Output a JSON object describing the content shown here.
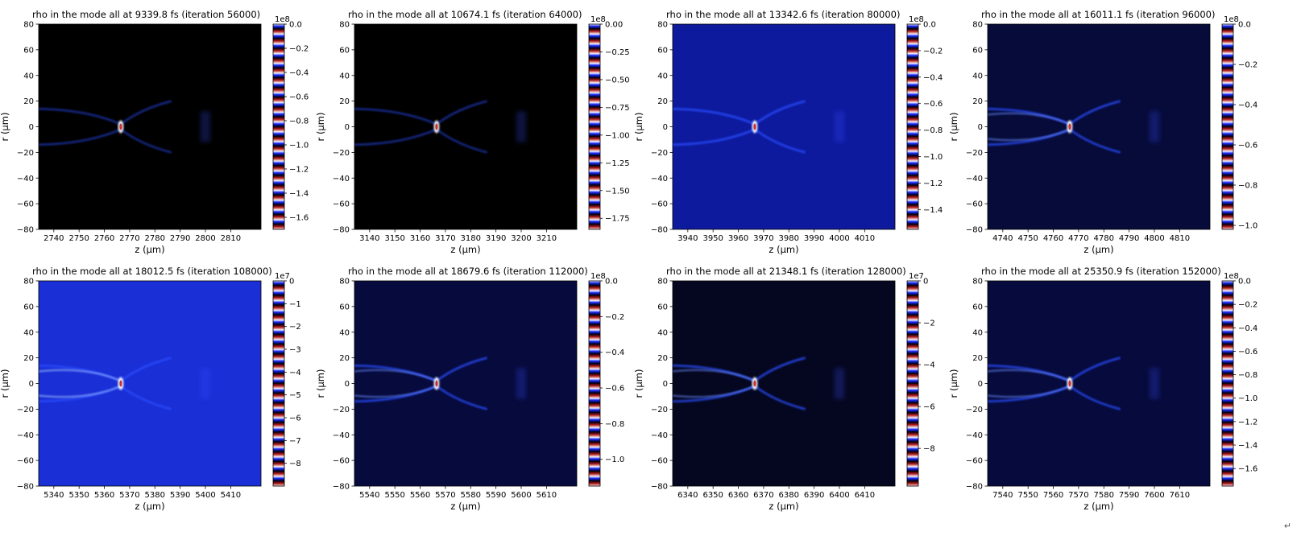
{
  "chart_data": [
    {
      "type": "heatmap",
      "title": "rho in the mode all at 9339.8 fs   (iteration 56000)",
      "xlabel": "z (μm)",
      "ylabel": "r (μm)",
      "xlim": [
        2734,
        2822
      ],
      "ylim": [
        -80,
        80
      ],
      "xticks": [
        2740,
        2750,
        2760,
        2770,
        2780,
        2790,
        2800,
        2810
      ],
      "yticks": [
        -80,
        -60,
        -40,
        -20,
        0,
        20,
        40,
        60,
        80
      ],
      "background": "#000000",
      "colorbar": {
        "exponent": "1e8",
        "range": [
          -1.7,
          0.0
        ],
        "ticks": [
          0.0,
          -0.2,
          -0.4,
          -0.6,
          -0.8,
          -1.0,
          -1.2,
          -1.4,
          -1.6
        ],
        "tick_labels": [
          "0.0",
          "−0.2",
          "−0.4",
          "−0.6",
          "−0.8",
          "−1.0",
          "−1.2",
          "−1.4",
          "−1.6"
        ]
      }
    },
    {
      "type": "heatmap",
      "title": "rho in the mode all at 10674.1 fs   (iteration 64000)",
      "xlabel": "z (μm)",
      "ylabel": "r (μm)",
      "xlim": [
        3134,
        3222
      ],
      "ylim": [
        -80,
        80
      ],
      "xticks": [
        3140,
        3150,
        3160,
        3170,
        3180,
        3190,
        3200,
        3210
      ],
      "yticks": [
        -80,
        -60,
        -40,
        -20,
        0,
        20,
        40,
        60,
        80
      ],
      "background": "#000000",
      "colorbar": {
        "exponent": "1e8",
        "range": [
          -1.85,
          0.0
        ],
        "ticks": [
          0.0,
          -0.25,
          -0.5,
          -0.75,
          -1.0,
          -1.25,
          -1.5,
          -1.75
        ],
        "tick_labels": [
          "0.00",
          "−0.25",
          "−0.50",
          "−0.75",
          "−1.00",
          "−1.25",
          "−1.50",
          "−1.75"
        ]
      }
    },
    {
      "type": "heatmap",
      "title": "rho in the mode all at 13342.6 fs   (iteration 80000)",
      "xlabel": "z (μm)",
      "ylabel": "r (μm)",
      "xlim": [
        3934,
        4022
      ],
      "ylim": [
        -80,
        80
      ],
      "xticks": [
        3940,
        3950,
        3960,
        3970,
        3980,
        3990,
        4000,
        4010
      ],
      "yticks": [
        -80,
        -60,
        -40,
        -20,
        0,
        20,
        40,
        60,
        80
      ],
      "background": "#0d1a9e",
      "colorbar": {
        "exponent": "1e8",
        "range": [
          -1.55,
          0.0
        ],
        "ticks": [
          0.0,
          -0.2,
          -0.4,
          -0.6,
          -0.8,
          -1.0,
          -1.2,
          -1.4
        ],
        "tick_labels": [
          "0.0",
          "−0.2",
          "−0.4",
          "−0.6",
          "−0.8",
          "−1.0",
          "−1.2",
          "−1.4"
        ]
      }
    },
    {
      "type": "heatmap",
      "title": "rho in the mode all at 16011.1 fs   (iteration 96000)",
      "xlabel": "z (μm)",
      "ylabel": "r (μm)",
      "xlim": [
        4734,
        4822
      ],
      "ylim": [
        -80,
        80
      ],
      "xticks": [
        4740,
        4750,
        4760,
        4770,
        4780,
        4790,
        4800,
        4810
      ],
      "yticks": [
        -80,
        -60,
        -40,
        -20,
        0,
        20,
        40,
        60,
        80
      ],
      "background": "#060b3a",
      "colorbar": {
        "exponent": "1e8",
        "range": [
          -1.02,
          0.0
        ],
        "ticks": [
          0.0,
          -0.2,
          -0.4,
          -0.6,
          -0.8,
          -1.0
        ],
        "tick_labels": [
          "0.0",
          "−0.2",
          "−0.4",
          "−0.6",
          "−0.8",
          "−1.0"
        ]
      }
    },
    {
      "type": "heatmap",
      "title": "rho in the mode all at 18012.5 fs   (iteration 108000)",
      "xlabel": "z (μm)",
      "ylabel": "r (μm)",
      "xlim": [
        5334,
        5422
      ],
      "ylim": [
        -80,
        80
      ],
      "xticks": [
        5340,
        5350,
        5360,
        5370,
        5380,
        5390,
        5400,
        5410
      ],
      "yticks": [
        -80,
        -60,
        -40,
        -20,
        0,
        20,
        40,
        60,
        80
      ],
      "background": "#1a2fd6",
      "colorbar": {
        "exponent": "1e7",
        "range": [
          -9.0,
          0.0
        ],
        "ticks": [
          0,
          -1,
          -2,
          -3,
          -4,
          -5,
          -6,
          -7,
          -8
        ],
        "tick_labels": [
          "0",
          "−1",
          "−2",
          "−3",
          "−4",
          "−5",
          "−6",
          "−7",
          "−8"
        ]
      }
    },
    {
      "type": "heatmap",
      "title": "rho in the mode all at 18679.6 fs   (iteration 112000)",
      "xlabel": "z (μm)",
      "ylabel": "r (μm)",
      "xlim": [
        5534,
        5622
      ],
      "ylim": [
        -80,
        80
      ],
      "xticks": [
        5540,
        5550,
        5560,
        5570,
        5580,
        5590,
        5600,
        5610
      ],
      "yticks": [
        -80,
        -60,
        -40,
        -20,
        0,
        20,
        40,
        60,
        80
      ],
      "background": "#060a3c",
      "colorbar": {
        "exponent": "1e8",
        "range": [
          -1.15,
          0.0
        ],
        "ticks": [
          0.0,
          -0.2,
          -0.4,
          -0.6,
          -0.8,
          -1.0
        ],
        "tick_labels": [
          "0.0",
          "−0.2",
          "−0.4",
          "−0.6",
          "−0.8",
          "−1.0"
        ]
      }
    },
    {
      "type": "heatmap",
      "title": "rho in the mode all at 21348.1 fs   (iteration 128000)",
      "xlabel": "z (μm)",
      "ylabel": "r (μm)",
      "xlim": [
        6334,
        6422
      ],
      "ylim": [
        -80,
        80
      ],
      "xticks": [
        6340,
        6350,
        6360,
        6370,
        6380,
        6390,
        6400,
        6410
      ],
      "yticks": [
        -80,
        -60,
        -40,
        -20,
        0,
        20,
        40,
        60,
        80
      ],
      "background": "#050720",
      "colorbar": {
        "exponent": "1e7",
        "range": [
          -9.8,
          0.0
        ],
        "ticks": [
          0,
          -2,
          -4,
          -6,
          -8
        ],
        "tick_labels": [
          "0",
          "−2",
          "−4",
          "−6",
          "−8"
        ]
      }
    },
    {
      "type": "heatmap",
      "title": "rho in the mode all at 25350.9 fs   (iteration 152000)",
      "xlabel": "z (μm)",
      "ylabel": "r (μm)",
      "xlim": [
        7534,
        7622
      ],
      "ylim": [
        -80,
        80
      ],
      "xticks": [
        7540,
        7550,
        7560,
        7570,
        7580,
        7590,
        7600,
        7610
      ],
      "yticks": [
        -80,
        -60,
        -40,
        -20,
        0,
        20,
        40,
        60,
        80
      ],
      "background": "#060a3c",
      "colorbar": {
        "exponent": "1e8",
        "range": [
          -1.75,
          0.0
        ],
        "ticks": [
          0.0,
          -0.2,
          -0.4,
          -0.6,
          -0.8,
          -1.0,
          -1.2,
          -1.4,
          -1.6
        ],
        "tick_labels": [
          "0.0",
          "−0.2",
          "−0.4",
          "−0.6",
          "−0.8",
          "−1.0",
          "−1.2",
          "−1.4",
          "−1.6"
        ]
      }
    }
  ],
  "corner_mark": "↵"
}
